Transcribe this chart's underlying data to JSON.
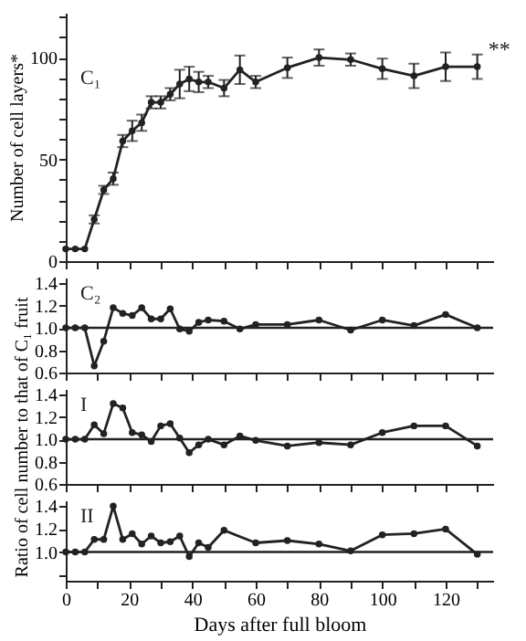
{
  "chart_data": [
    {
      "type": "line",
      "ylabel": "Number of cell layers*",
      "annotations": [
        "C₁",
        {
          "text": "**",
          "x": 130,
          "y": 104
        }
      ],
      "x": [
        0,
        3,
        6,
        9,
        12,
        15,
        18,
        21,
        24,
        27,
        30,
        33,
        36,
        39,
        42,
        45,
        50,
        55,
        60,
        70,
        80,
        90,
        100,
        110,
        120,
        130
      ],
      "xlim": [
        0,
        135
      ],
      "xticks": [
        0,
        10,
        20,
        30,
        40,
        50,
        60,
        70,
        80,
        90,
        100,
        110,
        120,
        130
      ],
      "ylim": [
        0,
        122
      ],
      "yticks": [
        0,
        {
          "value": 10,
          "label": null
        },
        {
          "value": 20,
          "label": null
        },
        {
          "value": 30,
          "label": null
        },
        {
          "value": 40,
          "label": null
        },
        50,
        {
          "value": 60,
          "label": null
        },
        {
          "value": 70,
          "label": null
        },
        {
          "value": 80,
          "label": null
        },
        {
          "value": 90,
          "label": null
        },
        100,
        {
          "value": 110,
          "label": null
        },
        {
          "value": 120,
          "label": null
        }
      ],
      "tick_labels": "y",
      "marker": "circle",
      "series": [
        {
          "color": "#222222",
          "values": [
            6,
            6,
            6,
            20.5,
            35,
            40.5,
            59,
            64,
            68,
            78,
            78,
            82,
            87,
            89.5,
            88,
            88,
            85,
            94,
            88,
            95,
            100,
            99,
            94.5,
            91,
            95.5,
            95.5
          ],
          "errors": [
            null,
            null,
            null,
            2,
            2,
            3,
            3,
            5,
            4,
            3,
            3,
            3,
            7,
            6,
            5,
            3,
            4,
            7,
            3,
            5,
            4,
            3,
            5,
            6,
            7,
            6
          ]
        }
      ]
    },
    {
      "type": "line",
      "annotations": [
        "C₂"
      ],
      "x": [
        0,
        3,
        6,
        9,
        12,
        15,
        18,
        21,
        24,
        27,
        30,
        33,
        36,
        39,
        42,
        45,
        50,
        55,
        60,
        70,
        80,
        90,
        100,
        110,
        120,
        130
      ],
      "xlim": [
        0,
        135
      ],
      "xticks": [
        0,
        10,
        20,
        30,
        40,
        50,
        60,
        70,
        80,
        90,
        100,
        110,
        120,
        130
      ],
      "ylim": [
        0.6,
        1.45
      ],
      "yticks": [
        0.6,
        0.8,
        {
          "value": 1,
          "label": "1.0"
        },
        1.2,
        1.4
      ],
      "tick_labels": "y",
      "marker": "circle",
      "ref_lines": [
        {
          "axis": "y",
          "value": 1,
          "color": "#222222"
        }
      ],
      "series": [
        {
          "color": "#222222",
          "values": [
            1,
            1,
            1,
            0.66,
            0.88,
            1.18,
            1.13,
            1.11,
            1.18,
            1.08,
            1.08,
            1.17,
            0.99,
            0.97,
            1.05,
            1.07,
            1.06,
            0.99,
            1.03,
            1.03,
            1.07,
            0.98,
            1.07,
            1.02,
            1.12,
            1
          ]
        }
      ]
    },
    {
      "type": "line",
      "ylabel": "Ratio of cell number to that of C₁ fruit",
      "annotations": [
        "I"
      ],
      "x": [
        0,
        3,
        6,
        9,
        12,
        15,
        18,
        21,
        24,
        27,
        30,
        33,
        36,
        39,
        42,
        45,
        50,
        55,
        60,
        70,
        80,
        90,
        100,
        110,
        120,
        130
      ],
      "xlim": [
        0,
        135
      ],
      "xticks": [
        0,
        10,
        20,
        30,
        40,
        50,
        60,
        70,
        80,
        90,
        100,
        110,
        120,
        130
      ],
      "ylim": [
        0.6,
        1.45
      ],
      "yticks": [
        0.6,
        0.8,
        {
          "value": 1,
          "label": "1.0"
        },
        1.2,
        1.4
      ],
      "tick_labels": "y",
      "marker": "circle",
      "ref_lines": [
        {
          "axis": "y",
          "value": 1,
          "color": "#222222"
        }
      ],
      "series": [
        {
          "color": "#222222",
          "values": [
            1,
            1,
            1,
            1.13,
            1.05,
            1.32,
            1.28,
            1.06,
            1.04,
            0.98,
            1.12,
            1.14,
            1.01,
            0.88,
            0.95,
            1,
            0.95,
            1.03,
            0.99,
            0.94,
            0.97,
            0.95,
            1.06,
            1.12,
            1.12,
            0.94
          ]
        }
      ]
    },
    {
      "type": "line",
      "xlabel": "Days after full bloom",
      "annotations": [
        "II"
      ],
      "x": [
        0,
        3,
        6,
        9,
        12,
        15,
        18,
        21,
        24,
        27,
        30,
        33,
        36,
        39,
        42,
        45,
        50,
        60,
        70,
        80,
        90,
        100,
        110,
        120,
        130
      ],
      "xlim": [
        0,
        135
      ],
      "xticks": [
        0,
        {
          "value": 10,
          "label": null
        },
        20,
        {
          "value": 30,
          "label": null
        },
        40,
        {
          "value": 50,
          "label": null
        },
        60,
        {
          "value": 70,
          "label": null
        },
        80,
        {
          "value": 90,
          "label": null
        },
        100,
        {
          "value": 110,
          "label": null
        },
        120,
        {
          "value": 130,
          "label": null
        }
      ],
      "ylim": [
        0.75,
        1.45
      ],
      "yticks": [
        {
          "value": 0.8,
          "label": null
        },
        {
          "value": 1,
          "label": "1.0"
        },
        1.2,
        1.4
      ],
      "marker": "circle",
      "ref_lines": [
        {
          "axis": "y",
          "value": 1,
          "color": "#222222"
        }
      ],
      "series": [
        {
          "color": "#222222",
          "values": [
            1,
            1,
            1,
            1.11,
            1.11,
            1.4,
            1.11,
            1.16,
            1.07,
            1.14,
            1.08,
            1.09,
            1.14,
            0.96,
            1.08,
            1.04,
            1.19,
            1.08,
            1.1,
            1.07,
            1.01,
            1.15,
            1.16,
            1.2,
            0.98
          ]
        }
      ]
    }
  ]
}
